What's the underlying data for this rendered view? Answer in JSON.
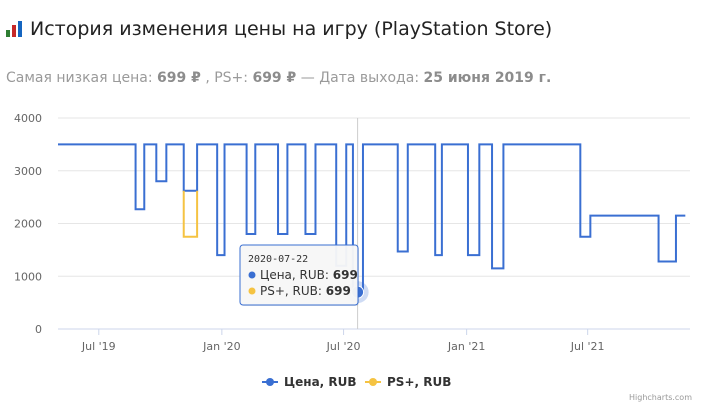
{
  "header": {
    "icon": "bar-chart-icon",
    "title": "История изменения цены на игру (PlayStation Store)"
  },
  "summary": {
    "lowest_label": "Самая низкая цена:",
    "lowest_value": "699 ₽",
    "ps_label": ", PS+:",
    "ps_value": "699 ₽",
    "release_label": "— Дата выхода:",
    "release_value": "25 июня 2019 г."
  },
  "tooltip": {
    "date": "2020-07-22",
    "rows": [
      {
        "label": "Цена, RUB:",
        "value": "699",
        "color": "#3a6fd2"
      },
      {
        "label": "PS+, RUB:",
        "value": "699",
        "color": "#f5c342"
      }
    ]
  },
  "credits": "Highcharts.com",
  "chart_data": {
    "type": "line",
    "step": true,
    "title": "",
    "xlabel": "",
    "ylabel": "",
    "xlim": [
      "2019-05-01",
      "2021-12-01"
    ],
    "ylim": [
      0,
      4000
    ],
    "y_ticks": [
      0,
      1000,
      2000,
      3000,
      4000
    ],
    "x_ticks": [
      {
        "date": "2019-07-01",
        "label": "Jul '19"
      },
      {
        "date": "2020-01-01",
        "label": "Jan '20"
      },
      {
        "date": "2020-07-01",
        "label": "Jul '20"
      },
      {
        "date": "2021-01-01",
        "label": "Jan '21"
      },
      {
        "date": "2021-07-01",
        "label": "Jul '21"
      }
    ],
    "grid": true,
    "legend_position": "bottom",
    "series": [
      {
        "name": "Цена, RUB",
        "color": "#3a6fd2",
        "points": [
          [
            "2019-05-01",
            3499
          ],
          [
            "2019-08-25",
            2270
          ],
          [
            "2019-09-07",
            3499
          ],
          [
            "2019-09-25",
            2800
          ],
          [
            "2019-10-10",
            3499
          ],
          [
            "2019-11-05",
            2620
          ],
          [
            "2019-11-25",
            3499
          ],
          [
            "2019-12-25",
            1400
          ],
          [
            "2020-01-05",
            3499
          ],
          [
            "2020-02-07",
            1800
          ],
          [
            "2020-02-20",
            3499
          ],
          [
            "2020-03-25",
            1800
          ],
          [
            "2020-04-08",
            3499
          ],
          [
            "2020-05-05",
            1800
          ],
          [
            "2020-05-20",
            3499
          ],
          [
            "2020-06-20",
            1200
          ],
          [
            "2020-07-05",
            3499
          ],
          [
            "2020-07-15",
            699
          ],
          [
            "2020-07-30",
            3499
          ],
          [
            "2020-09-20",
            1470
          ],
          [
            "2020-10-05",
            3499
          ],
          [
            "2020-11-15",
            1400
          ],
          [
            "2020-11-25",
            3499
          ],
          [
            "2021-01-03",
            1400
          ],
          [
            "2021-01-20",
            3499
          ],
          [
            "2021-02-08",
            1150
          ],
          [
            "2021-02-25",
            3499
          ],
          [
            "2021-06-20",
            1750
          ],
          [
            "2021-07-05",
            2150
          ],
          [
            "2021-10-15",
            1280
          ],
          [
            "2021-11-10",
            2150
          ],
          [
            "2021-11-24",
            2150
          ]
        ]
      },
      {
        "name": "PS+, RUB",
        "color": "#f5c342",
        "points": [
          [
            "2019-11-05",
            2620
          ],
          [
            "2019-11-05",
            1750
          ],
          [
            "2019-11-25",
            1750
          ],
          [
            "2019-11-25",
            2620
          ]
        ]
      }
    ],
    "highlight": {
      "date": "2020-07-22",
      "value": 699,
      "series": "Цена, RUB"
    }
  }
}
